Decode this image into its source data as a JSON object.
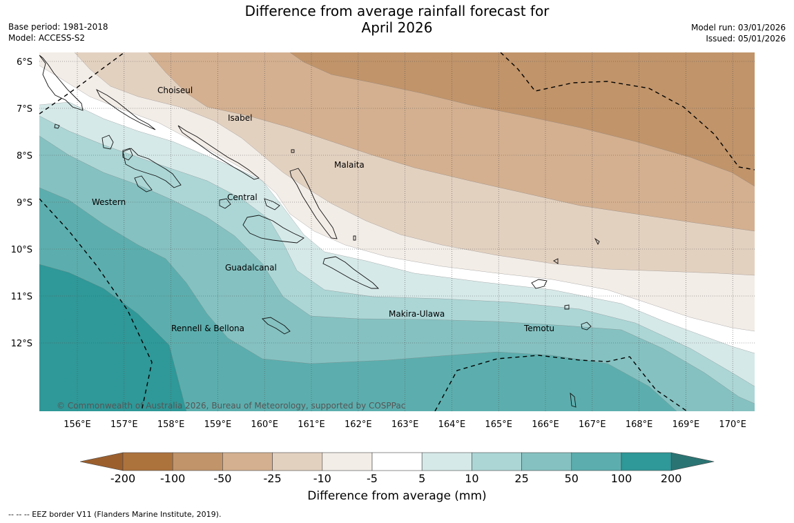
{
  "title_line1": "Difference from average rainfall forecast for",
  "title_line2": "April 2026",
  "meta_left": [
    "Base period: 1981-2018",
    "Model: ACCESS-S2"
  ],
  "meta_right": [
    "Model run: 03/01/2026",
    "Issued: 05/01/2026"
  ],
  "lat_labels": [
    "6°S",
    "7°S",
    "8°S",
    "9°S",
    "10°S",
    "11°S",
    "12°S"
  ],
  "lon_labels": [
    "156°E",
    "157°E",
    "158°E",
    "159°E",
    "160°E",
    "161°E",
    "162°E",
    "163°E",
    "164°E",
    "165°E",
    "166°E",
    "167°E",
    "168°E",
    "169°E",
    "170°E"
  ],
  "places": [
    "Choiseul",
    "Isabel",
    "Malaita",
    "Western",
    "Central",
    "Guadalcanal",
    "Makira-Ulawa",
    "Rennell & Bellona",
    "Temotu"
  ],
  "copyright": "© Commonwealth of Australia 2026, Bureau of Meteorology, supported by COSPPac",
  "legend": {
    "title": "Difference from average (mm)",
    "ticks": [
      "-200",
      "-100",
      "-50",
      "-25",
      "-10",
      "-5",
      "5",
      "10",
      "25",
      "50",
      "100",
      "200"
    ],
    "colors": [
      "#9b5f2e",
      "#ad733d",
      "#c1946a",
      "#d4b090",
      "#e3d1c0",
      "#f3ede7",
      "#ffffff",
      "#d6e9e9",
      "#acd6d6",
      "#85c1c1",
      "#5caeae",
      "#2f9898",
      "#2b7474"
    ]
  },
  "footnote": "--  --  -- EEZ border V11 (Flanders Marine Institute, 2019)."
}
